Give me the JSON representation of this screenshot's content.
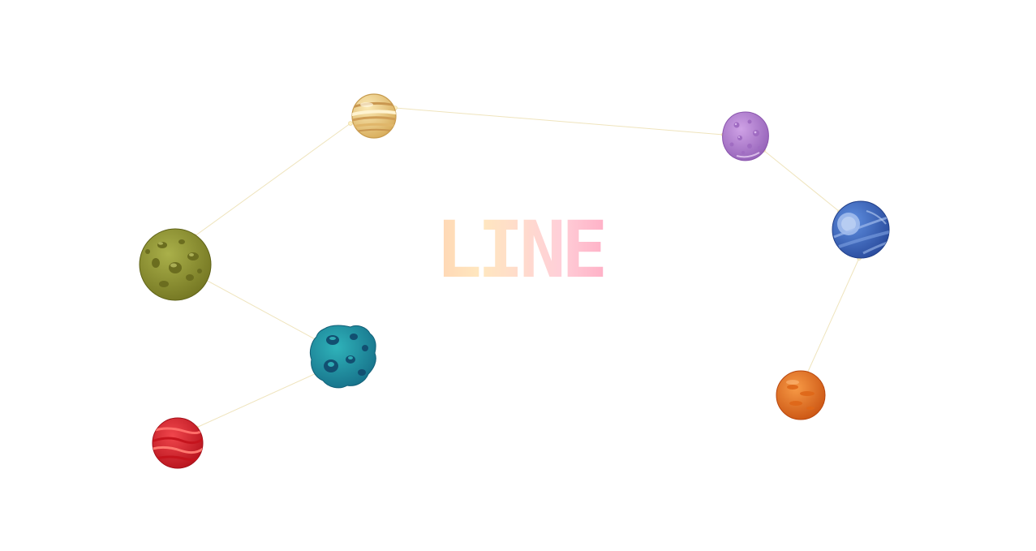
{
  "title": "LINE",
  "planets": [
    {
      "id": "planet-yellow-gas",
      "kind": "yellow gas giant",
      "color": "#e9c97a"
    },
    {
      "id": "planet-purple",
      "kind": "purple cratered",
      "color": "#b583d1"
    },
    {
      "id": "planet-blue",
      "kind": "blue swirl",
      "color": "#3f6fc4"
    },
    {
      "id": "planet-olive",
      "kind": "olive cratered",
      "color": "#8f9433"
    },
    {
      "id": "planet-teal",
      "kind": "teal asteroid",
      "color": "#1f8fa0"
    },
    {
      "id": "planet-red",
      "kind": "red striped",
      "color": "#d8202a"
    },
    {
      "id": "planet-orange",
      "kind": "orange",
      "color": "#e96d1e"
    }
  ],
  "line_color": "#f0e6c0",
  "dot_color": "#fff1c4"
}
